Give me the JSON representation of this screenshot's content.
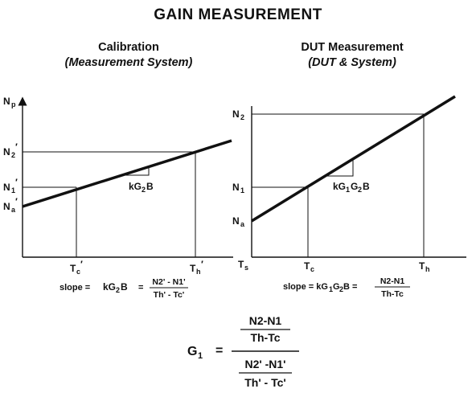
{
  "title": "GAIN MEASUREMENT",
  "left_panel": {
    "heading": "Calibration",
    "subheading": "(Measurement System)",
    "y_axis": "Np",
    "y_labels": [
      "N2'",
      "N1'",
      "Na'"
    ],
    "x_labels": [
      "Tc'",
      "Th'"
    ],
    "slope_label": "kG2B",
    "slope_eq_prefix": "slope =",
    "slope_eq_term": "kG2B",
    "slope_eq_num": "N2' - N1'",
    "slope_eq_den": "Th' - Tc'"
  },
  "right_panel": {
    "heading": "DUT Measurement",
    "subheading": "(DUT & System)",
    "y_labels": [
      "N2",
      "N1",
      "Na"
    ],
    "x_origin": "Ts",
    "x_labels": [
      "Tc",
      "Th"
    ],
    "slope_label": "kG1G2B",
    "slope_eq_prefix": "slope = kG1G2B =",
    "slope_eq_num": "N2-N1",
    "slope_eq_den": "Th-Tc"
  },
  "formula": {
    "lhs": "G1",
    "eq": "=",
    "top_num": "N2-N1",
    "top_den": "Th-Tc",
    "bot_num": "N2' -N1'",
    "bot_den": "Th' - Tc'"
  }
}
